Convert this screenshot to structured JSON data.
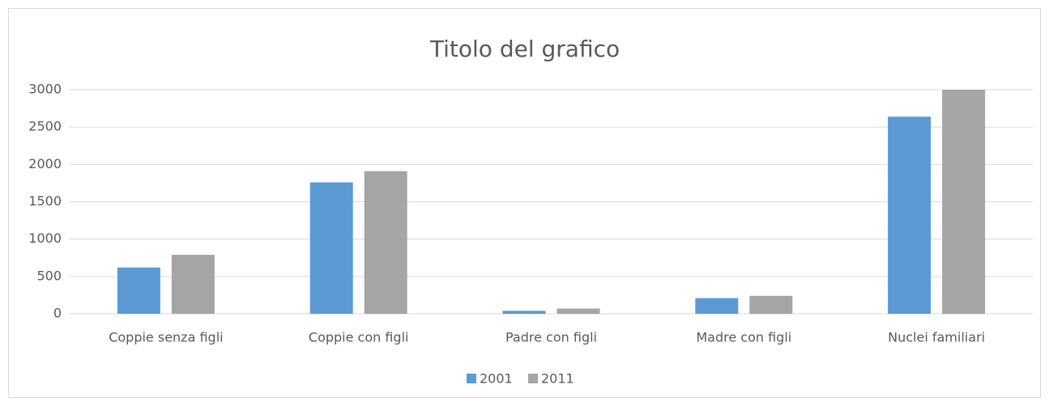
{
  "chart_data": {
    "type": "bar",
    "title": "Titolo del grafico",
    "categories": [
      "Coppie senza figli",
      "Coppie con figli",
      "Padre con figli",
      "Madre con figli",
      "Nuclei familiari"
    ],
    "series": [
      {
        "name": "2001",
        "color": "#5b9bd5",
        "values": [
          620,
          1760,
          40,
          210,
          2640
        ]
      },
      {
        "name": "2011",
        "color": "#a5a5a5",
        "values": [
          790,
          1910,
          70,
          240,
          3000
        ]
      }
    ],
    "ylim": [
      0,
      3000
    ],
    "yticks": [
      0,
      500,
      1000,
      1500,
      2000,
      2500,
      3000
    ],
    "grid": true,
    "legend": "bottom"
  }
}
